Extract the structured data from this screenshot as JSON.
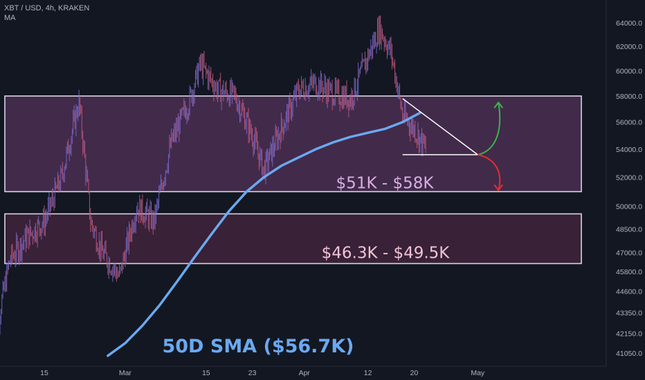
{
  "header": {
    "symbol_line": "XBT / USD, 4h, KRAKEN",
    "indicator": "MA"
  },
  "colors": {
    "background": "#131722",
    "candle_up": "#7b6fd6",
    "candle_down": "#c85a7a",
    "sma": "#6aa9f0",
    "zone_upper_fill": "#6a3a6e",
    "zone_lower_fill": "#5a2a48",
    "zone_border": "#d8d8e0",
    "label_upper": "#d7b0e0",
    "label_lower": "#f1c4d6",
    "sma_label": "#6aa9f0",
    "up_arrow": "#3cb54a",
    "down_arrow": "#e23030",
    "axis_text": "#b2b5be"
  },
  "chart_data": {
    "type": "line",
    "title": "XBT / USD, 4h, KRAKEN",
    "xlabel": "",
    "ylabel": "",
    "x_ticks": [
      "15",
      "Mar",
      "15",
      "23",
      "Apr",
      "12",
      "20",
      "May"
    ],
    "y_ticks": [
      "64000.0",
      "62000.0",
      "60000.0",
      "58000.0",
      "56000.0",
      "54000.0",
      "52000.0",
      "50000.0",
      "48500.0",
      "47000.0",
      "45800.0",
      "44600.0",
      "43350.0",
      "42150.0",
      "41050.0"
    ],
    "y_scale": "log",
    "ylim": [
      40500,
      65500
    ],
    "grid": false,
    "series": [
      {
        "name": "50D SMA ($56.7K)",
        "x": [
          "2021-02-26",
          "2021-03-01",
          "2021-03-04",
          "2021-03-07",
          "2021-03-10",
          "2021-03-13",
          "2021-03-16",
          "2021-03-19",
          "2021-03-22",
          "2021-03-25",
          "2021-03-28",
          "2021-03-31",
          "2021-04-03",
          "2021-04-06",
          "2021-04-09",
          "2021-04-12",
          "2021-04-15",
          "2021-04-18",
          "2021-04-21"
        ],
        "values": [
          40900,
          41600,
          42600,
          43800,
          45200,
          46700,
          48200,
          49700,
          51000,
          52000,
          52800,
          53400,
          54000,
          54500,
          54900,
          55200,
          55500,
          56000,
          56700
        ]
      },
      {
        "name": "XBT / USD",
        "x": [
          "2021-02-06",
          "2021-02-09",
          "2021-02-12",
          "2021-02-15",
          "2021-02-18",
          "2021-02-21",
          "2021-02-23",
          "2021-02-25",
          "2021-02-28",
          "2021-03-03",
          "2021-03-06",
          "2021-03-09",
          "2021-03-12",
          "2021-03-14",
          "2021-03-17",
          "2021-03-20",
          "2021-03-23",
          "2021-03-25",
          "2021-03-28",
          "2021-03-31",
          "2021-04-03",
          "2021-04-06",
          "2021-04-09",
          "2021-04-11",
          "2021-04-14",
          "2021-04-16",
          "2021-04-18",
          "2021-04-20",
          "2021-04-22"
        ],
        "values": [
          41000,
          46500,
          48000,
          49000,
          52000,
          57500,
          49000,
          47000,
          45500,
          50000,
          49000,
          54500,
          57500,
          60500,
          58500,
          58000,
          55000,
          52500,
          55500,
          58500,
          59000,
          58200,
          57800,
          60000,
          63500,
          61500,
          56500,
          55500,
          54000
        ]
      }
    ],
    "zones": [
      {
        "label": "$51K - $58K",
        "low": 51000,
        "high": 58000
      },
      {
        "label": "$46.3K - $49.5K",
        "low": 46300,
        "high": 49500
      }
    ],
    "annotations": [
      {
        "text": "50D SMA ($56.7K)"
      },
      {
        "type": "triangle",
        "apex_date": "2021-05-01",
        "apex_price": 53600,
        "top_start": [
          "2021-04-18",
          57800
        ],
        "bottom_start": [
          "2021-04-18",
          53600
        ]
      }
    ]
  }
}
